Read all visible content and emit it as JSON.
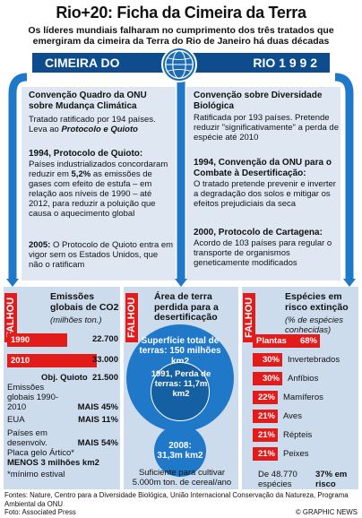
{
  "title": "Rio+20: Ficha da Cimeira da Terra",
  "subtitle": "Os líderes mundiais falharam no cumprimento dos três tratados que emergiram da cimeira da Terra do Rio de Janeiro há duas décadas",
  "banner": {
    "left": "CIMEIRA DO",
    "right": "RIO 1 9 9 2"
  },
  "climate": {
    "title": "Convenção Quadro da ONU sobre Mudança Climática",
    "text1": "Tratado ratificado por 194 países. Leva ao",
    "text1_em": "Protocolo e Quioto",
    "kyoto_head": "1994, Protocolo de Quioto:",
    "kyoto_text_a": "Países industrializados concordaram reduzir em",
    "kyoto_pct": "5,2%",
    "kyoto_text_b": "as emissões de gases com efeito de estufa – em relação aos níveis de 1990 – até 2012, para reduzir a poluição que causa o aquecimento global",
    "y2005_head": "2005:",
    "y2005_text": "O Protocolo de Quioto entra em vigor sem os Estados Unidos, que não o ratificam"
  },
  "biodiv": {
    "title": "Convenção sobre Diversidade Biológica",
    "text1": "Ratificada por 193 países. Pretende reduzir \"significativamente\" a perda de espécie até 2010",
    "desert_head": "1994, Convenção da ONU para o Combate à Desertificação:",
    "desert_text": "O tratado pretende prevenir e inverter a degradação dos solos e mitigar os efeitos prejudiciais da seca",
    "cart_head": "2000, Protocolo de Cartagena:",
    "cart_text": "Acordo de 103 países para regular o transporte de organismos geneticamente modificados"
  },
  "falhou": "FALHOU",
  "co2": {
    "title": "Emissões globais de CO2",
    "unit": "(milhões ton.)",
    "rows": [
      {
        "year": "1990",
        "value": "22.700",
        "frac": 0.67
      },
      {
        "year": "2010",
        "value": "33.000",
        "frac": 1.0
      }
    ],
    "target_label": "Obj. Quioto",
    "target_value": "21.500",
    "stats_title": "Emissões globais 1990-2010",
    "stats": [
      {
        "label": "Emissões globais 1990-2010",
        "value": "MAIS 45%"
      },
      {
        "label": "EUA",
        "value": "MAIS 11%"
      },
      {
        "label": "Países em desenvolv.",
        "value": "MAIS 54%"
      },
      {
        "label": "Placa gelo Ártico*",
        "value": "MENOS 3 milhões km2"
      }
    ],
    "note": "*mínimo estival"
  },
  "land": {
    "title": "Área de terra perdida para a desertificação",
    "total": "Superfície total de terras: 150 milhões km2",
    "y1991": "1991, Perda de terras: 11,7m km2",
    "y2008_year": "2008:",
    "y2008_val": "31,3m km2",
    "note": "Suficiente para cultivar 5.000m ton. de cereal/ano"
  },
  "species": {
    "title": "Espécies em risco extinção",
    "unit": "(% de espécies conhecidas)",
    "rows": [
      {
        "pct": "68%",
        "name": "Plantas",
        "frac": 0.68
      },
      {
        "pct": "30%",
        "name": "Invertebrados",
        "frac": 0.3
      },
      {
        "pct": "30%",
        "name": "Anfíbios",
        "frac": 0.3
      },
      {
        "pct": "22%",
        "name": "Mamíferos",
        "frac": 0.22
      },
      {
        "pct": "21%",
        "name": "Aves",
        "frac": 0.21
      },
      {
        "pct": "21%",
        "name": "Répteis",
        "frac": 0.21
      },
      {
        "pct": "21%",
        "name": "Peixes",
        "frac": 0.21
      }
    ],
    "total_a": "De 48.770 espécies",
    "total_b": "37% em risco"
  },
  "footer": {
    "sources": "Fontes: Nature, Centro para a Diversidade Biológica, União Internacional Conservação da Natureza, Programa Ambiental da ONU",
    "photo": "Foto: Associated Press",
    "credit": "© GRAPHIC NEWS"
  }
}
